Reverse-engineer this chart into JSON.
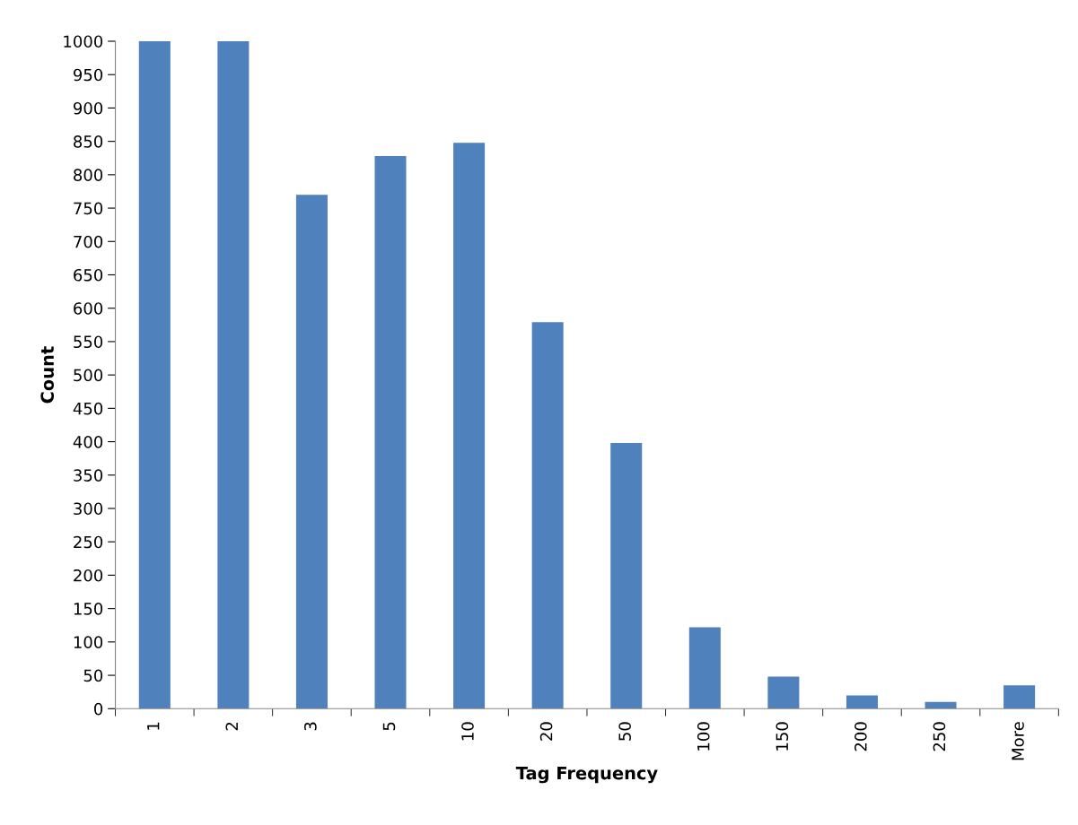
{
  "chart_data": {
    "type": "bar",
    "xlabel": "Tag Frequency",
    "ylabel": "Count",
    "categories": [
      "1",
      "2",
      "3",
      "5",
      "10",
      "20",
      "50",
      "100",
      "150",
      "200",
      "250",
      "More"
    ],
    "values": [
      1000,
      1000,
      770,
      828,
      848,
      579,
      398,
      122,
      48,
      20,
      10,
      35
    ],
    "color": "#4f81bd",
    "ylim": [
      0,
      1000
    ],
    "yticks": [
      0,
      50,
      100,
      150,
      200,
      250,
      300,
      350,
      400,
      450,
      500,
      550,
      600,
      650,
      700,
      750,
      800,
      850,
      900,
      950,
      1000
    ],
    "grid": false,
    "legend": false
  }
}
